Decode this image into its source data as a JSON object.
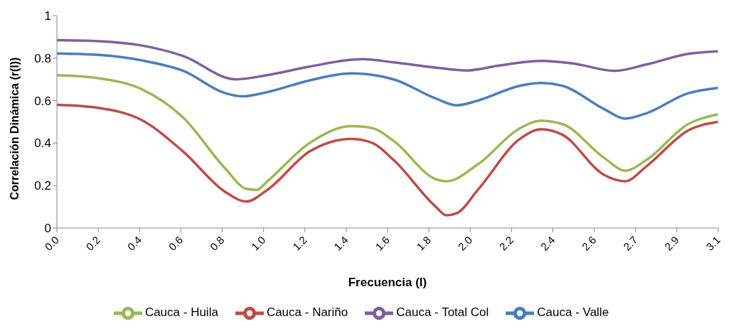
{
  "chart_data": {
    "type": "line",
    "xlabel": "Frecuencia (l)",
    "ylabel": "Correlación Dinámica (r(l))",
    "xlim": [
      0,
      3.1416
    ],
    "ylim": [
      0,
      1
    ],
    "xticks": [
      {
        "value": 0,
        "label": "0.0"
      },
      {
        "value": 0.1963,
        "label": "0.2"
      },
      {
        "value": 0.3927,
        "label": "0.4"
      },
      {
        "value": 0.589,
        "label": "0.6"
      },
      {
        "value": 0.7854,
        "label": "0.8"
      },
      {
        "value": 0.9817,
        "label": "1.0"
      },
      {
        "value": 1.1781,
        "label": "1.2"
      },
      {
        "value": 1.3744,
        "label": "1.4"
      },
      {
        "value": 1.5708,
        "label": "1.6"
      },
      {
        "value": 1.7671,
        "label": "1.8"
      },
      {
        "value": 1.9635,
        "label": "2.0"
      },
      {
        "value": 2.1598,
        "label": "2.2"
      },
      {
        "value": 2.3562,
        "label": "2.4"
      },
      {
        "value": 2.5525,
        "label": "2.6"
      },
      {
        "value": 2.7489,
        "label": "2.7"
      },
      {
        "value": 2.9452,
        "label": "2.9"
      },
      {
        "value": 3.1416,
        "label": "3.1"
      }
    ],
    "yticks": [
      0,
      0.2,
      0.4,
      0.6,
      0.8,
      1
    ],
    "grid": false,
    "legend": "bottom",
    "marker": "none",
    "line_style": "solid",
    "series": [
      {
        "name": "Cauca - Valle",
        "color": "#4a7ebb",
        "x": [
          0,
          0.2,
          0.4,
          0.6,
          0.8,
          0.88,
          1.0,
          1.2,
          1.4,
          1.6,
          1.8,
          1.9,
          2.0,
          2.2,
          2.3,
          2.4,
          2.6,
          2.7,
          2.8,
          3.0,
          3.14
        ],
        "values": [
          0.822,
          0.815,
          0.79,
          0.74,
          0.635,
          0.62,
          0.64,
          0.695,
          0.728,
          0.7,
          0.61,
          0.578,
          0.6,
          0.67,
          0.683,
          0.67,
          0.56,
          0.515,
          0.54,
          0.635,
          0.66
        ]
      },
      {
        "name": "Cauca - Nariño",
        "color": "#be4b48",
        "x": [
          0,
          0.2,
          0.4,
          0.6,
          0.8,
          0.9,
          1.0,
          1.2,
          1.4,
          1.5,
          1.6,
          1.8,
          1.85,
          1.9,
          2.0,
          2.2,
          2.3,
          2.4,
          2.6,
          2.7,
          2.8,
          3.0,
          3.14
        ],
        "values": [
          0.58,
          0.565,
          0.51,
          0.36,
          0.17,
          0.125,
          0.18,
          0.36,
          0.42,
          0.4,
          0.32,
          0.1,
          0.06,
          0.07,
          0.18,
          0.42,
          0.465,
          0.44,
          0.25,
          0.22,
          0.29,
          0.46,
          0.5
        ]
      },
      {
        "name": "Cauca - Huila",
        "color": "#98b954",
        "x": [
          0,
          0.2,
          0.4,
          0.6,
          0.8,
          0.9,
          0.95,
          1.0,
          1.2,
          1.4,
          1.5,
          1.6,
          1.8,
          1.85,
          2.0,
          2.2,
          2.3,
          2.4,
          2.6,
          2.7,
          2.8,
          3.0,
          3.14
        ],
        "values": [
          0.72,
          0.705,
          0.655,
          0.52,
          0.28,
          0.185,
          0.18,
          0.22,
          0.4,
          0.48,
          0.47,
          0.41,
          0.23,
          0.22,
          0.3,
          0.47,
          0.505,
          0.49,
          0.33,
          0.27,
          0.32,
          0.49,
          0.535
        ]
      },
      {
        "name": "Cauca - Total Col",
        "color": "#7d60a0",
        "x": [
          0,
          0.2,
          0.4,
          0.6,
          0.85,
          1.0,
          1.2,
          1.45,
          1.6,
          1.8,
          1.95,
          2.1,
          2.3,
          2.45,
          2.65,
          2.8,
          3.0,
          3.14
        ],
        "values": [
          0.885,
          0.88,
          0.86,
          0.81,
          0.7,
          0.72,
          0.76,
          0.795,
          0.78,
          0.755,
          0.742,
          0.765,
          0.787,
          0.775,
          0.74,
          0.77,
          0.82,
          0.832
        ]
      }
    ]
  }
}
